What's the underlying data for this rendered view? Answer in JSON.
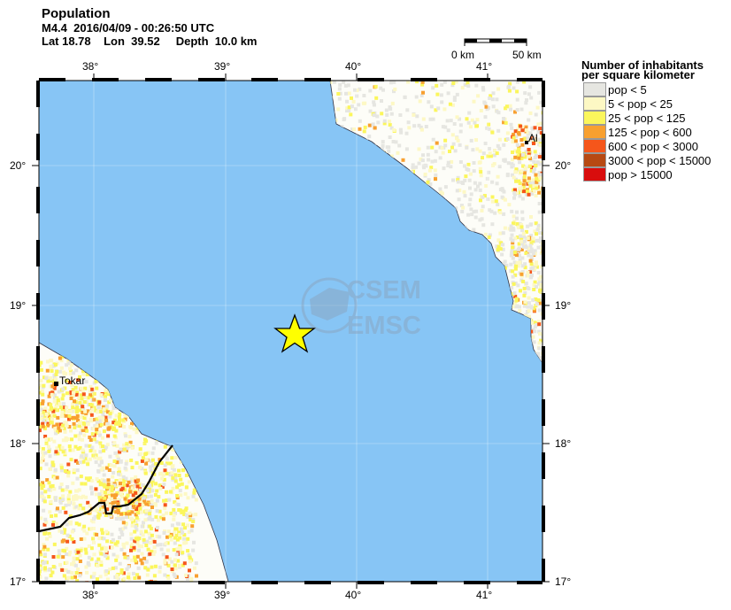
{
  "header": {
    "title": "Population",
    "line2": "M4.4  2016/04/09 - 00:26:50 UTC",
    "line3": "Lat 18.78    Lon  39.52     Depth  10.0 km"
  },
  "scale_bar": {
    "left": "0 km",
    "right": "50 km"
  },
  "map": {
    "lon_ticks": [
      "38°",
      "39°",
      "40°",
      "41°"
    ],
    "lat_ticks": [
      "20°",
      "19°",
      "18°",
      "17°"
    ],
    "towns": [
      {
        "name": "Tokar"
      },
      {
        "name": "Al"
      }
    ],
    "epicenter": {
      "lat": 18.78,
      "lon": 39.52,
      "icon": "star-icon",
      "color": "#ffff00"
    },
    "watermark": [
      "CSEM",
      "EMSC"
    ],
    "sea_color": "#87c5f5"
  },
  "legend": {
    "title_line1": "Number of inhabitants",
    "title_line2": "per square kilometer",
    "items": [
      {
        "label": "pop < 5",
        "color": "#e6e6e1"
      },
      {
        "label": "5 < pop < 25",
        "color": "#fdf8c4"
      },
      {
        "label": "25 < pop < 125",
        "color": "#fbf65c"
      },
      {
        "label": "125 < pop < 600",
        "color": "#f8a030"
      },
      {
        "label": "600 < pop < 3000",
        "color": "#f5561b"
      },
      {
        "label": "3000 < pop < 15000",
        "color": "#b74913"
      },
      {
        "label": "pop > 15000",
        "color": "#d90d0d"
      }
    ]
  }
}
